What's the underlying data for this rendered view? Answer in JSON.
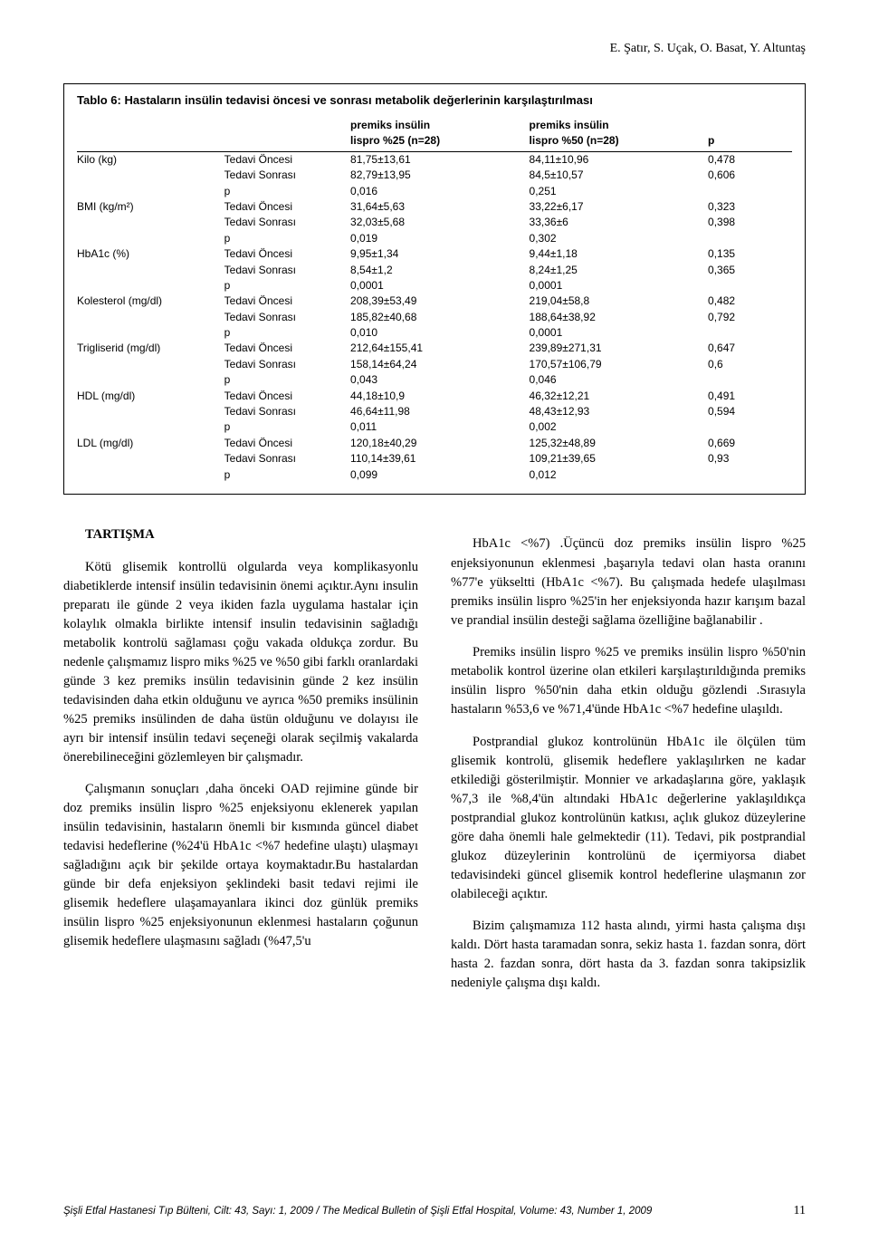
{
  "authors_line": "E. Şatır, S. Uçak, O. Basat, Y. Altuntaş",
  "table": {
    "title": "Tablo 6: Hastaların insülin tedavisi öncesi ve sonrası metabolik değerlerinin karşılaştırılması",
    "head": {
      "blank1": "",
      "blank2": "",
      "col_a_l1": "premiks insülin",
      "col_a_l2": "lispro %25 (n=28)",
      "col_b_l1": "premiks insülin",
      "col_b_l2": "lispro %50 (n=28)",
      "p": "p"
    },
    "rows": [
      {
        "param": "Kilo (kg)",
        "lines": [
          {
            "stage": "Tedavi Öncesi",
            "a": "81,75±13,61",
            "b": "84,11±10,96",
            "p": "0,478"
          },
          {
            "stage": "Tedavi Sonrası",
            "a": "82,79±13,95",
            "b": "84,5±10,57",
            "p": "0,606"
          },
          {
            "stage": "p",
            "a": "0,016",
            "b": "0,251",
            "p": ""
          }
        ]
      },
      {
        "param": "BMI (kg/m²)",
        "lines": [
          {
            "stage": "Tedavi Öncesi",
            "a": "31,64±5,63",
            "b": "33,22±6,17",
            "p": "0,323"
          },
          {
            "stage": "Tedavi Sonrası",
            "a": "32,03±5,68",
            "b": "33,36±6",
            "p": "0,398"
          },
          {
            "stage": "p",
            "a": "0,019",
            "b": "0,302",
            "p": ""
          }
        ]
      },
      {
        "param": "HbA1c (%)",
        "lines": [
          {
            "stage": "Tedavi Öncesi",
            "a": "9,95±1,34",
            "b": "9,44±1,18",
            "p": "0,135"
          },
          {
            "stage": "Tedavi Sonrası",
            "a": "8,54±1,2",
            "b": "8,24±1,25",
            "p": "0,365"
          },
          {
            "stage": "p",
            "a": "0,0001",
            "b": "0,0001",
            "p": ""
          }
        ]
      },
      {
        "param": "Kolesterol (mg/dl)",
        "lines": [
          {
            "stage": "Tedavi Öncesi",
            "a": "208,39±53,49",
            "b": "219,04±58,8",
            "p": "0,482"
          },
          {
            "stage": "Tedavi Sonrası",
            "a": "185,82±40,68",
            "b": "188,64±38,92",
            "p": "0,792"
          },
          {
            "stage": "p",
            "a": "0,010",
            "b": "0,0001",
            "p": ""
          }
        ]
      },
      {
        "param": "Trigliserid (mg/dl)",
        "lines": [
          {
            "stage": "Tedavi Öncesi",
            "a": "212,64±155,41",
            "b": "239,89±271,31",
            "p": "0,647"
          },
          {
            "stage": "Tedavi Sonrası",
            "a": "158,14±64,24",
            "b": "170,57±106,79",
            "p": "0,6"
          },
          {
            "stage": "p",
            "a": "0,043",
            "b": "0,046",
            "p": ""
          }
        ]
      },
      {
        "param": "HDL (mg/dl)",
        "lines": [
          {
            "stage": "Tedavi Öncesi",
            "a": "44,18±10,9",
            "b": "46,32±12,21",
            "p": "0,491"
          },
          {
            "stage": "Tedavi Sonrası",
            "a": "46,64±11,98",
            "b": "48,43±12,93",
            "p": "0,594"
          },
          {
            "stage": "p",
            "a": "0,011",
            "b": "0,002",
            "p": ""
          }
        ]
      },
      {
        "param": "LDL (mg/dl)",
        "lines": [
          {
            "stage": "Tedavi Öncesi",
            "a": "120,18±40,29",
            "b": "125,32±48,89",
            "p": "0,669"
          },
          {
            "stage": "Tedavi Sonrası",
            "a": "110,14±39,61",
            "b": "109,21±39,65",
            "p": "0,93"
          },
          {
            "stage": "p",
            "a": "0,099",
            "b": "0,012",
            "p": ""
          }
        ]
      }
    ]
  },
  "section_heading": "TARTIŞMA",
  "left_paras": [
    "Kötü glisemik kontrollü olgularda veya komplikasyonlu diabetiklerde intensif insülin tedavisinin önemi açıktır.Aynı insulin preparatı ile günde 2 veya ikiden fazla uygulama hastalar için kolaylık olmakla birlikte intensif insulin tedavisinin sağladığı metabolik kontrolü sağlaması çoğu vakada oldukça zordur. Bu nedenle çalışmamız lispro miks %25 ve %50 gibi farklı oranlardaki günde 3 kez premiks insülin tedavisinin günde 2 kez insülin tedavisinden daha etkin olduğunu ve ayrıca %50 premiks insülinin %25 premiks insülinden de daha üstün olduğunu ve dolayısı ile ayrı bir intensif insülin tedavi seçeneği olarak seçilmiş vakalarda önerebilineceğini gözlemleyen bir çalışmadır.",
    "Çalışmanın sonuçları ,daha önceki OAD rejimine günde bir doz premiks insülin lispro %25 enjeksiyonu eklenerek yapılan insülin tedavisinin, hastaların önemli bir kısmında güncel diabet tedavisi hedeflerine (%24'ü HbA1c <%7 hedefine ulaştı) ulaşmayı sağladığını açık bir şekilde ortaya koymaktadır.Bu hastalardan günde bir defa enjeksiyon şeklindeki basit tedavi rejimi ile glisemik hedeflere ulaşamayanlara ikinci doz günlük premiks insülin lispro %25 enjeksiyonunun eklenmesi hastaların çoğunun glisemik hedeflere ulaşmasını sağladı (%47,5'u"
  ],
  "right_paras": [
    "HbA1c <%7) .Üçüncü doz premiks insülin lispro %25 enjeksiyonunun eklenmesi ,başarıyla tedavi olan hasta oranını %77'e yükseltti (HbA1c <%7). Bu çalışmada hedefe ulaşılması premiks insülin lispro %25'in her enjeksiyonda hazır karışım bazal ve prandial insülin desteği sağlama özelliğine bağlanabilir .",
    "Premiks insülin lispro %25 ve premiks insülin lispro %50'nin metabolik kontrol üzerine olan etkileri karşılaştırıldığında premiks insülin lispro %50'nin daha etkin olduğu gözlendi .Sırasıyla hastaların %53,6 ve %71,4'ünde HbA1c <%7 hedefine ulaşıldı.",
    "Postprandial glukoz kontrolünün HbA1c ile ölçülen tüm glisemik kontrolü, glisemik hedeflere yaklaşılırken ne kadar etkilediği gösterilmiştir. Monnier ve arkadaşlarına göre, yaklaşık %7,3 ile %8,4'ün altındaki HbA1c değerlerine yaklaşıldıkça postprandial glukoz kontrolünün katkısı, açlık glukoz düzeylerine göre daha önemli hale gelmektedir (11). Tedavi, pik postprandial glukoz düzeylerinin kontrolünü de içermiyorsa diabet tedavisindeki güncel glisemik kontrol hedeflerine ulaşmanın zor olabileceği açıktır.",
    "Bizim çalışmamıza 112 hasta alındı, yirmi hasta çalışma dışı kaldı. Dört hasta taramadan sonra, sekiz hasta 1. fazdan sonra, dört hasta 2. fazdan sonra, dört hasta da 3. fazdan sonra takipsizlik nedeniyle çalışma dışı kaldı."
  ],
  "footer": {
    "citation": "Şişli Etfal Hastanesi Tıp Bülteni, Cilt: 43, Sayı: 1, 2009 / The Medical Bulletin of Şişli Etfal Hospital, Volume: 43, Number 1, 2009",
    "page": "11"
  }
}
